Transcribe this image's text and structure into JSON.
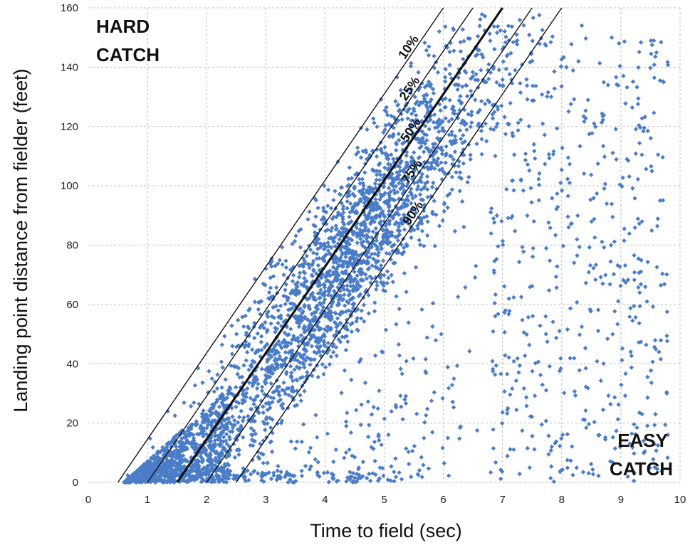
{
  "chart_data": {
    "type": "scatter",
    "title": "",
    "xlabel": "Time to field (sec)",
    "ylabel": "Landing point distance from fielder (feet)",
    "xlim": [
      0,
      10
    ],
    "ylim": [
      0,
      160
    ],
    "xticks": [
      0,
      1,
      2,
      3,
      4,
      5,
      6,
      7,
      8,
      9,
      10
    ],
    "yticks": [
      0,
      20,
      40,
      60,
      80,
      100,
      120,
      140,
      160
    ],
    "grid": true,
    "point_color": "#4a7cc7",
    "point_count_estimate": 28000,
    "cloud_description": "dense scatter of fly balls between the 10% and 90% lines, spreading sparsely beyond 7 sec",
    "percentile_lines": [
      {
        "label": "10%",
        "x_intercept": 0.5,
        "x_end": 6.0,
        "y_end": 160,
        "bold": false
      },
      {
        "label": "25%",
        "x_intercept": 1.0,
        "x_end": 6.5,
        "y_end": 160,
        "bold": false
      },
      {
        "label": "50%",
        "x_intercept": 1.5,
        "x_end": 7.0,
        "y_end": 160,
        "bold": true
      },
      {
        "label": "75%",
        "x_intercept": 2.0,
        "x_end": 7.5,
        "y_end": 160,
        "bold": false
      },
      {
        "label": "90%",
        "x_intercept": 2.5,
        "x_end": 8.0,
        "y_end": 160,
        "bold": false
      }
    ],
    "annotations": [
      {
        "text_lines": [
          "HARD",
          "CATCH"
        ],
        "position": "top-left"
      },
      {
        "text_lines": [
          "EASY",
          "CATCH"
        ],
        "position": "bottom-right"
      }
    ]
  }
}
